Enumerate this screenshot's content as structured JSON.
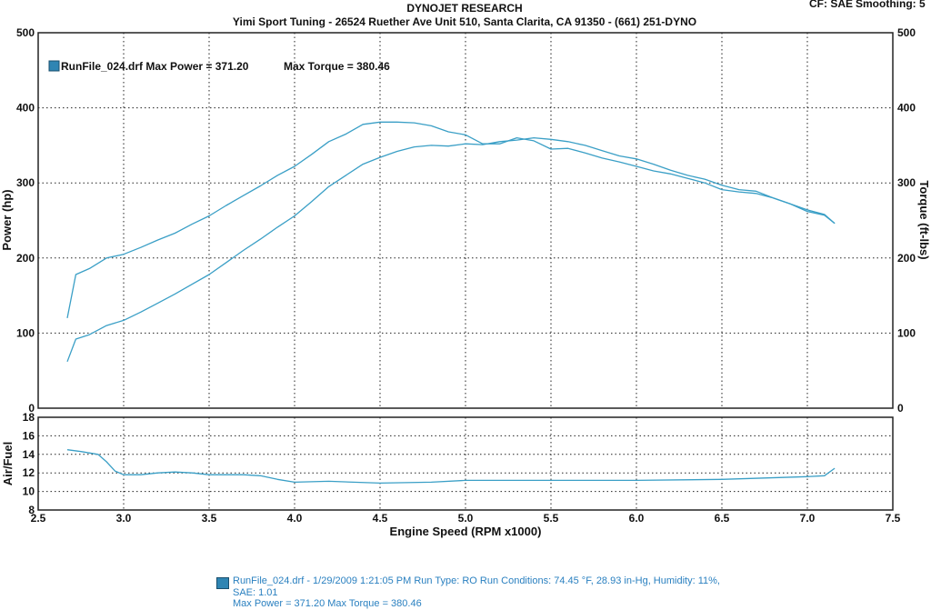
{
  "header": {
    "title": "DYNOJET RESEARCH",
    "subtitle": "Yimi Sport Tuning - 26524 Ruether Ave Unit 510, Santa Clarita, CA 91350 - (661) 251-DYNO",
    "cf_label": "CF: SAE",
    "smoothing_label": "Smoothing: 5"
  },
  "legend": {
    "run_label": "RunFile_024.drf Max Power = 371.20",
    "torque_label": "Max Torque = 380.46"
  },
  "footer": {
    "line1": "RunFile_024.drf - 1/29/2009 1:21:05 PM  Run Type: RO  Run Conditions: 74.45 °F, 28.93 in-Hg,  Humidity:  11%,",
    "line2": "SAE: 1.01",
    "line3": "Max Power = 371.20  Max Torque = 380.46"
  },
  "colors": {
    "series": "#3a9fc6",
    "legend_swatch": "#2f85b3",
    "footer_text": "#2a80c0"
  },
  "chart_data": [
    {
      "type": "line",
      "panel": "power-torque",
      "xlabel": "Engine Speed (RPM x1000)",
      "ylabel": "Power (hp)",
      "ylabel_right": "Torque (ft-lbs)",
      "xlim": [
        2.5,
        7.5
      ],
      "ylim": [
        0,
        500
      ],
      "ylim_right": [
        0,
        500
      ],
      "xticks": [
        "2.5",
        "3.0",
        "3.5",
        "4.0",
        "4.5",
        "5.0",
        "5.5",
        "6.0",
        "6.5",
        "7.0",
        "7.5"
      ],
      "yticks": [
        "0",
        "100",
        "200",
        "300",
        "400",
        "500"
      ],
      "yticks_right": [
        "0",
        "100",
        "200",
        "300",
        "400",
        "500"
      ],
      "grid": true,
      "legend_position": "top-left",
      "series": [
        {
          "role": "power",
          "x": [
            2.67,
            2.72,
            2.8,
            2.9,
            3.0,
            3.1,
            3.2,
            3.3,
            3.4,
            3.5,
            3.6,
            3.7,
            3.8,
            3.9,
            4.0,
            4.1,
            4.2,
            4.3,
            4.4,
            4.5,
            4.6,
            4.7,
            4.8,
            4.9,
            5.0,
            5.1,
            5.2,
            5.3,
            5.4,
            5.5,
            5.6,
            5.7,
            5.8,
            5.9,
            6.0,
            6.1,
            6.2,
            6.3,
            6.4,
            6.5,
            6.6,
            6.7,
            6.8,
            6.9,
            7.0,
            7.1,
            7.16
          ],
          "values": [
            62,
            92,
            98,
            110,
            117,
            128,
            140,
            152,
            165,
            178,
            194,
            210,
            225,
            241,
            256,
            275,
            295,
            310,
            325,
            334,
            342,
            348,
            350,
            349,
            352,
            351,
            355,
            357,
            360,
            358,
            355,
            350,
            343,
            336,
            332,
            325,
            317,
            310,
            305,
            297,
            291,
            289,
            280,
            272,
            264,
            258,
            246
          ]
        },
        {
          "role": "torque",
          "x": [
            2.67,
            2.72,
            2.8,
            2.9,
            3.0,
            3.1,
            3.2,
            3.3,
            3.4,
            3.5,
            3.6,
            3.7,
            3.8,
            3.9,
            4.0,
            4.1,
            4.2,
            4.3,
            4.4,
            4.5,
            4.6,
            4.7,
            4.8,
            4.9,
            5.0,
            5.1,
            5.2,
            5.3,
            5.4,
            5.5,
            5.6,
            5.7,
            5.8,
            5.9,
            6.0,
            6.1,
            6.2,
            6.3,
            6.4,
            6.5,
            6.6,
            6.7,
            6.8,
            6.9,
            7.0,
            7.1,
            7.16
          ],
          "values": [
            120,
            178,
            186,
            200,
            205,
            214,
            224,
            233,
            245,
            256,
            270,
            283,
            296,
            310,
            322,
            338,
            355,
            365,
            378,
            381,
            381,
            380,
            376,
            368,
            364,
            352,
            352,
            360,
            356,
            345,
            346,
            340,
            333,
            328,
            322,
            316,
            312,
            306,
            300,
            291,
            288,
            286,
            280,
            272,
            262,
            257,
            246
          ]
        }
      ]
    },
    {
      "type": "line",
      "panel": "air-fuel",
      "xlabel": "Engine Speed (RPM x1000)",
      "ylabel": "Air/Fuel",
      "xlim": [
        2.5,
        7.5
      ],
      "ylim": [
        8,
        18
      ],
      "xticks": [
        "2.5",
        "3.0",
        "3.5",
        "4.0",
        "4.5",
        "5.0",
        "5.5",
        "6.0",
        "6.5",
        "7.0",
        "7.5"
      ],
      "yticks": [
        "8",
        "10",
        "12",
        "14",
        "16",
        "18"
      ],
      "grid": true,
      "series": [
        {
          "role": "air-fuel",
          "x": [
            2.67,
            2.75,
            2.85,
            2.9,
            2.95,
            3.0,
            3.1,
            3.2,
            3.3,
            3.4,
            3.5,
            3.6,
            3.7,
            3.8,
            3.9,
            4.0,
            4.2,
            4.5,
            4.8,
            5.0,
            5.5,
            6.0,
            6.5,
            7.0,
            7.1,
            7.16
          ],
          "values": [
            14.5,
            14.3,
            14.0,
            13.2,
            12.2,
            11.8,
            11.8,
            12.0,
            12.1,
            12.0,
            11.8,
            11.8,
            11.8,
            11.7,
            11.3,
            11.0,
            11.1,
            10.9,
            11.0,
            11.2,
            11.2,
            11.2,
            11.3,
            11.6,
            11.7,
            12.5
          ]
        }
      ]
    }
  ]
}
